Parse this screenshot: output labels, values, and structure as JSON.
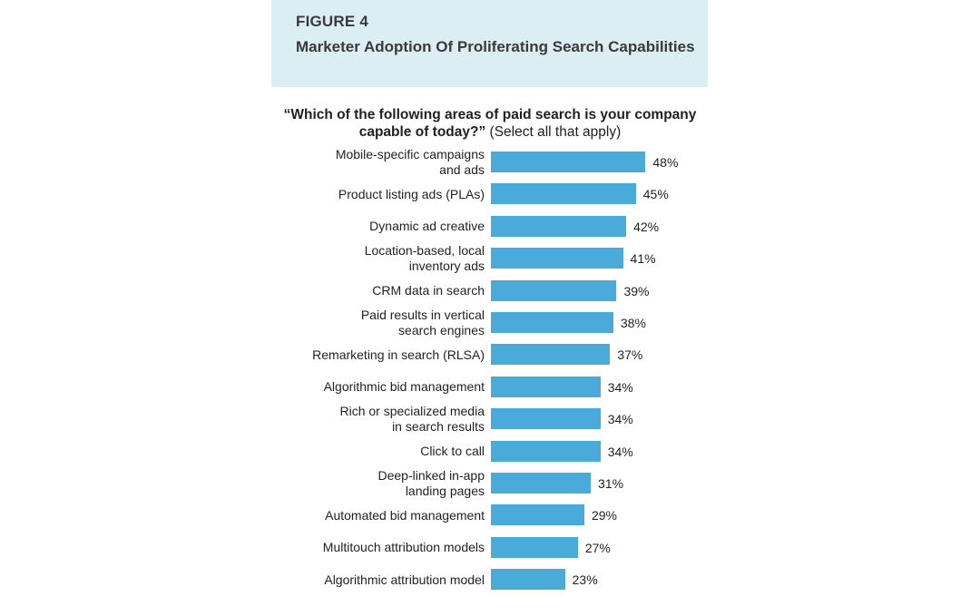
{
  "header": {
    "figure_label": "FIGURE 4",
    "title": "Marketer Adoption Of Proliferating Search Capabilities"
  },
  "question": {
    "bold": "“Which of the following areas of paid search is your company capable of today?”",
    "normal": " (Select all that apply)"
  },
  "colors": {
    "header_bg": "#daeef3",
    "bar": "#4aaad9"
  },
  "chart_data": {
    "type": "bar",
    "orientation": "horizontal",
    "categories": [
      "Mobile-specific campaigns and ads",
      "Product listing ads (PLAs)",
      "Dynamic ad creative",
      "Location-based, local inventory ads",
      "CRM data in search",
      "Paid results in vertical search engines",
      "Remarketing in search (RLSA)",
      "Algorithmic bid management",
      "Rich or specialized media in search results",
      "Click to call",
      "Deep-linked in-app landing pages",
      "Automated bid management",
      "Multitouch attribution models",
      "Algorithmic attribution model"
    ],
    "category_lines": [
      [
        "Mobile-specific campaigns",
        "and ads"
      ],
      [
        "Product listing ads (PLAs)"
      ],
      [
        "Dynamic ad creative"
      ],
      [
        "Location-based, local",
        "inventory ads"
      ],
      [
        "CRM data in search"
      ],
      [
        "Paid results in vertical",
        "search engines"
      ],
      [
        "Remarketing in search (RLSA)"
      ],
      [
        "Algorithmic bid management"
      ],
      [
        "Rich or specialized media",
        "in search results"
      ],
      [
        "Click to call"
      ],
      [
        "Deep-linked in-app",
        "landing pages"
      ],
      [
        "Automated bid management"
      ],
      [
        "Multitouch attribution models"
      ],
      [
        "Algorithmic attribution model"
      ]
    ],
    "values": [
      48,
      45,
      42,
      41,
      39,
      38,
      37,
      34,
      34,
      34,
      31,
      29,
      27,
      23
    ],
    "value_labels": [
      "48%",
      "45%",
      "42%",
      "41%",
      "39%",
      "38%",
      "37%",
      "34%",
      "34%",
      "34%",
      "31%",
      "29%",
      "27%",
      "23%"
    ],
    "unit": "%",
    "grid": false,
    "legend": "none"
  }
}
